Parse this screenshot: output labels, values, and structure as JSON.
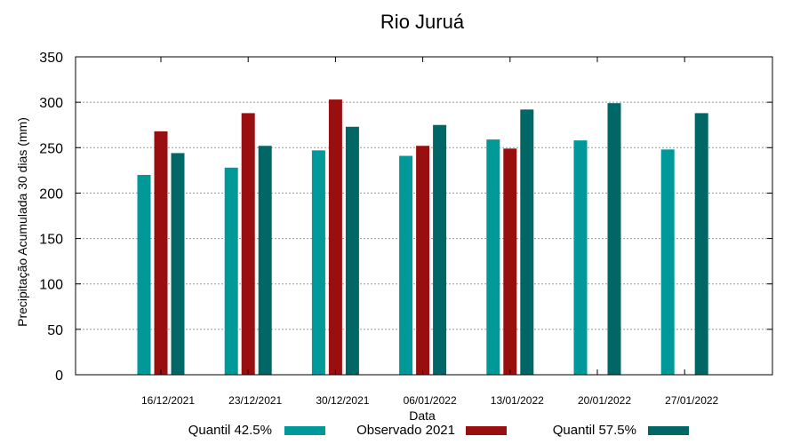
{
  "chart_data": {
    "type": "bar",
    "title": "Rio Juruá",
    "xlabel": "Data",
    "ylabel": "Precipitação Acumulada 30 dias (mm)",
    "ylim": [
      0,
      350
    ],
    "yticks": [
      0,
      50,
      100,
      150,
      200,
      250,
      300,
      350
    ],
    "grid": true,
    "legend_position": "bottom",
    "categories": [
      "16/12/2021",
      "23/12/2021",
      "30/12/2021",
      "06/01/2022",
      "13/01/2022",
      "20/01/2022",
      "27/01/2022"
    ],
    "series": [
      {
        "name": "Quantil 42.5%",
        "color": "#009999",
        "values": [
          220,
          228,
          247,
          241,
          259,
          258,
          248
        ]
      },
      {
        "name": "Observado 2021",
        "color": "#990f0f",
        "values": [
          268,
          288,
          303,
          252,
          249,
          null,
          null
        ]
      },
      {
        "name": "Quantil 57.5%",
        "color": "#006666",
        "values": [
          244,
          252,
          273,
          275,
          292,
          299,
          288
        ]
      }
    ]
  }
}
